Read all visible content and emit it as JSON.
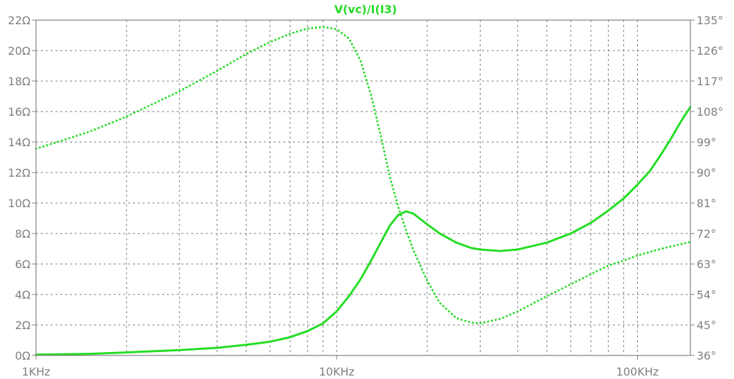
{
  "chart_data": {
    "type": "line",
    "title": "V(vc)/I(I3)",
    "x_scale": "log",
    "xlim": [
      1000,
      150000
    ],
    "x_ticks": [
      {
        "value": 1000,
        "label": "1KHz"
      },
      {
        "value": 10000,
        "label": "10KHz"
      },
      {
        "value": 100000,
        "label": "100KHz"
      }
    ],
    "y_left": {
      "lim": [
        0,
        22
      ],
      "ticks": [
        {
          "value": 0,
          "label": "0Ω"
        },
        {
          "value": 2,
          "label": "2Ω"
        },
        {
          "value": 4,
          "label": "4Ω"
        },
        {
          "value": 6,
          "label": "6Ω"
        },
        {
          "value": 8,
          "label": "8Ω"
        },
        {
          "value": 10,
          "label": "10Ω"
        },
        {
          "value": 12,
          "label": "12Ω"
        },
        {
          "value": 14,
          "label": "14Ω"
        },
        {
          "value": 16,
          "label": "16Ω"
        },
        {
          "value": 18,
          "label": "18Ω"
        },
        {
          "value": 20,
          "label": "20Ω"
        },
        {
          "value": 22,
          "label": "22Ω"
        }
      ]
    },
    "y_right": {
      "lim": [
        36,
        135
      ],
      "ticks": [
        {
          "value": 36,
          "label": "36°"
        },
        {
          "value": 45,
          "label": "45°"
        },
        {
          "value": 54,
          "label": "54°"
        },
        {
          "value": 63,
          "label": "63°"
        },
        {
          "value": 72,
          "label": "72°"
        },
        {
          "value": 81,
          "label": "81°"
        },
        {
          "value": 90,
          "label": "90°"
        },
        {
          "value": 99,
          "label": "99°"
        },
        {
          "value": 108,
          "label": "108°"
        },
        {
          "value": 117,
          "label": "117°"
        },
        {
          "value": 126,
          "label": "126°"
        },
        {
          "value": 135,
          "label": "135°"
        }
      ]
    },
    "grid": true,
    "series": [
      {
        "axis": "left",
        "style": "solid",
        "color": "#22dd22",
        "points": [
          [
            1000,
            0.05
          ],
          [
            1500,
            0.1
          ],
          [
            2000,
            0.2
          ],
          [
            3000,
            0.35
          ],
          [
            4000,
            0.5
          ],
          [
            5000,
            0.7
          ],
          [
            6000,
            0.9
          ],
          [
            7000,
            1.2
          ],
          [
            8000,
            1.6
          ],
          [
            9000,
            2.1
          ],
          [
            10000,
            2.9
          ],
          [
            11000,
            3.9
          ],
          [
            12000,
            5.0
          ],
          [
            13000,
            6.2
          ],
          [
            14000,
            7.4
          ],
          [
            15000,
            8.5
          ],
          [
            16000,
            9.2
          ],
          [
            17000,
            9.45
          ],
          [
            18000,
            9.3
          ],
          [
            20000,
            8.6
          ],
          [
            22000,
            8.0
          ],
          [
            25000,
            7.4
          ],
          [
            28000,
            7.05
          ],
          [
            30000,
            6.95
          ],
          [
            35000,
            6.85
          ],
          [
            40000,
            6.95
          ],
          [
            50000,
            7.4
          ],
          [
            60000,
            8.0
          ],
          [
            70000,
            8.7
          ],
          [
            80000,
            9.5
          ],
          [
            90000,
            10.3
          ],
          [
            100000,
            11.2
          ],
          [
            110000,
            12.1
          ],
          [
            120000,
            13.2
          ],
          [
            130000,
            14.3
          ],
          [
            140000,
            15.4
          ],
          [
            150000,
            16.3
          ]
        ]
      },
      {
        "axis": "right",
        "style": "dotted",
        "color": "#22dd22",
        "points": [
          [
            1000,
            97
          ],
          [
            1500,
            102
          ],
          [
            2000,
            106.5
          ],
          [
            3000,
            114
          ],
          [
            4000,
            120
          ],
          [
            5000,
            125
          ],
          [
            6000,
            128.5
          ],
          [
            7000,
            131
          ],
          [
            8000,
            132.5
          ],
          [
            9000,
            133
          ],
          [
            10000,
            132.3
          ],
          [
            11000,
            129.5
          ],
          [
            12000,
            123
          ],
          [
            13000,
            113
          ],
          [
            14000,
            101
          ],
          [
            15000,
            89
          ],
          [
            16000,
            80
          ],
          [
            17000,
            73
          ],
          [
            18000,
            67
          ],
          [
            20000,
            58
          ],
          [
            22000,
            51.5
          ],
          [
            25000,
            47
          ],
          [
            28000,
            45.7
          ],
          [
            30000,
            45.5
          ],
          [
            35000,
            46.8
          ],
          [
            40000,
            49
          ],
          [
            50000,
            53.5
          ],
          [
            60000,
            57
          ],
          [
            70000,
            60
          ],
          [
            80000,
            62.5
          ],
          [
            90000,
            64
          ],
          [
            100000,
            65.5
          ],
          [
            120000,
            67.5
          ],
          [
            150000,
            69.5
          ]
        ]
      }
    ]
  }
}
